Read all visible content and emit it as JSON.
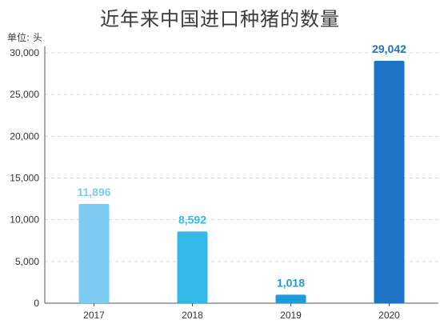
{
  "chart_data": {
    "type": "bar",
    "title": "近年来中国进口种猪的数量",
    "unit_label": "单位: 头",
    "categories": [
      "2017",
      "2018",
      "2019",
      "2020"
    ],
    "values": [
      11896,
      8592,
      1018,
      29042
    ],
    "data_labels": [
      "11,896",
      "8,592",
      "1,018",
      "29,042"
    ],
    "bar_colors": [
      "#7dcbf0",
      "#33b9e6",
      "#1e9ad9",
      "#1e73c6"
    ],
    "ylim": [
      0,
      30000
    ],
    "yticks": [
      0,
      5000,
      10000,
      15000,
      20000,
      25000,
      30000
    ],
    "ytick_labels": [
      "0",
      "5,000",
      "10,000",
      "15,000",
      "20,000",
      "25,000",
      "30,000"
    ],
    "grid": true
  }
}
